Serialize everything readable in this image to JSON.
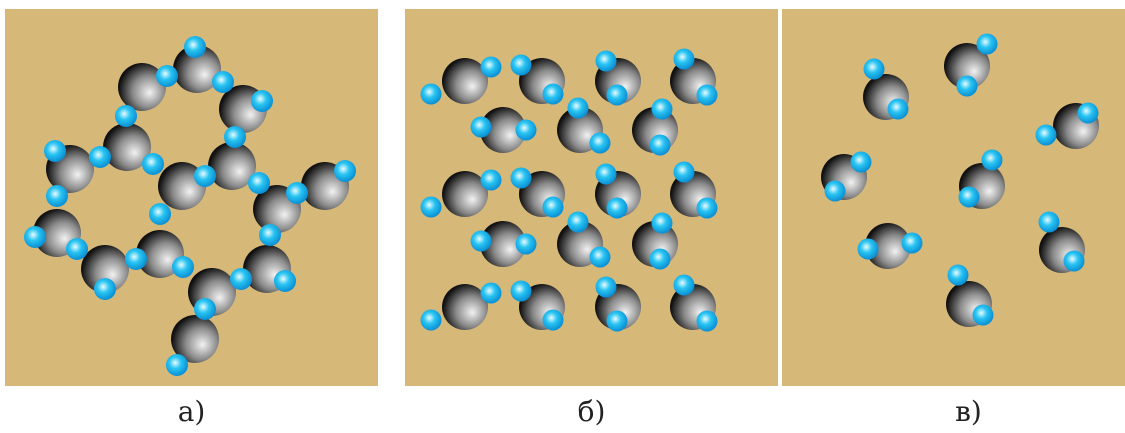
{
  "panels": [
    {
      "caption": "а)"
    },
    {
      "caption": "б)"
    },
    {
      "caption": "в)"
    }
  ],
  "colors": {
    "background": "#d6b878",
    "oxygen_light": "#f2f2f2",
    "oxygen_dark": "#111111",
    "hydrogen_light": "#e8fbff",
    "hydrogen_mid": "#29c4f2",
    "hydrogen_dark": "#0a8fd4"
  },
  "icons": {
    "oxygen": "oxygen-atom-icon",
    "hydrogen": "hydrogen-atom-icon"
  }
}
